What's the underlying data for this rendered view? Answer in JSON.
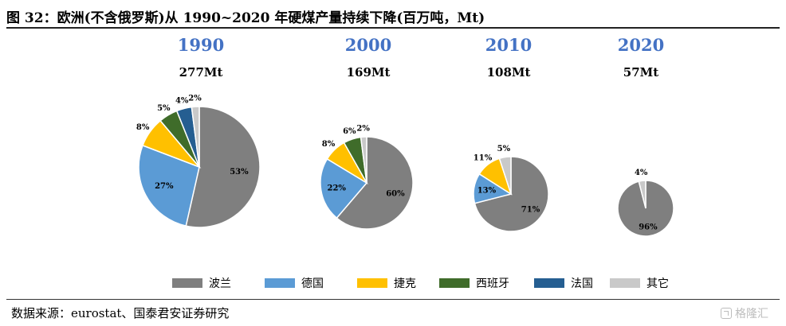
{
  "figure": {
    "title": "图 32：欧洲(不含俄罗斯)从 1990~2020 年硬煤产量持续下降(百万吨，Mt)",
    "source": "数据来源：eurostat、国泰君安证券研究",
    "watermark": "格隆汇"
  },
  "chart_data": {
    "type": "pie",
    "title": "图 32：欧洲(不含俄罗斯)从 1990~2020 年硬煤产量持续下降(百万吨，Mt)",
    "legend": [
      "波兰",
      "德国",
      "捷克",
      "西班牙",
      "法国",
      "其它"
    ],
    "legend_position": "bottom",
    "colors": {
      "波兰": "#7f7f7f",
      "德国": "#5b9bd5",
      "捷克": "#ffc000",
      "西班牙": "#3f6c2a",
      "法国": "#255e91",
      "其它": "#c9c9c9"
    },
    "pies": [
      {
        "year": "1990",
        "total_label": "277Mt",
        "total": 277,
        "slices": [
          {
            "name": "波兰",
            "value": 53,
            "label": "53%"
          },
          {
            "name": "德国",
            "value": 27,
            "label": "27%"
          },
          {
            "name": "捷克",
            "value": 8,
            "label": "8%"
          },
          {
            "name": "西班牙",
            "value": 5,
            "label": "5%"
          },
          {
            "name": "法国",
            "value": 4,
            "label": "4%"
          },
          {
            "name": "其它",
            "value": 2,
            "label": "2%"
          }
        ]
      },
      {
        "year": "2000",
        "total_label": "169Mt",
        "total": 169,
        "slices": [
          {
            "name": "波兰",
            "value": 60,
            "label": "60%"
          },
          {
            "name": "德国",
            "value": 22,
            "label": "22%"
          },
          {
            "name": "捷克",
            "value": 8,
            "label": "8%"
          },
          {
            "name": "西班牙",
            "value": 6,
            "label": "6%"
          },
          {
            "name": "其它",
            "value": 2,
            "label": "2%"
          }
        ]
      },
      {
        "year": "2010",
        "total_label": "108Mt",
        "total": 108,
        "slices": [
          {
            "name": "波兰",
            "value": 71,
            "label": "71%"
          },
          {
            "name": "德国",
            "value": 13,
            "label": "13%"
          },
          {
            "name": "捷克",
            "value": 11,
            "label": "11%"
          },
          {
            "name": "其它",
            "value": 5,
            "label": "5%"
          }
        ]
      },
      {
        "year": "2020",
        "total_label": "57Mt",
        "total": 57,
        "slices": [
          {
            "name": "波兰",
            "value": 96,
            "label": "96%"
          },
          {
            "name": "其它",
            "value": 4,
            "label": "4%"
          }
        ]
      }
    ]
  }
}
